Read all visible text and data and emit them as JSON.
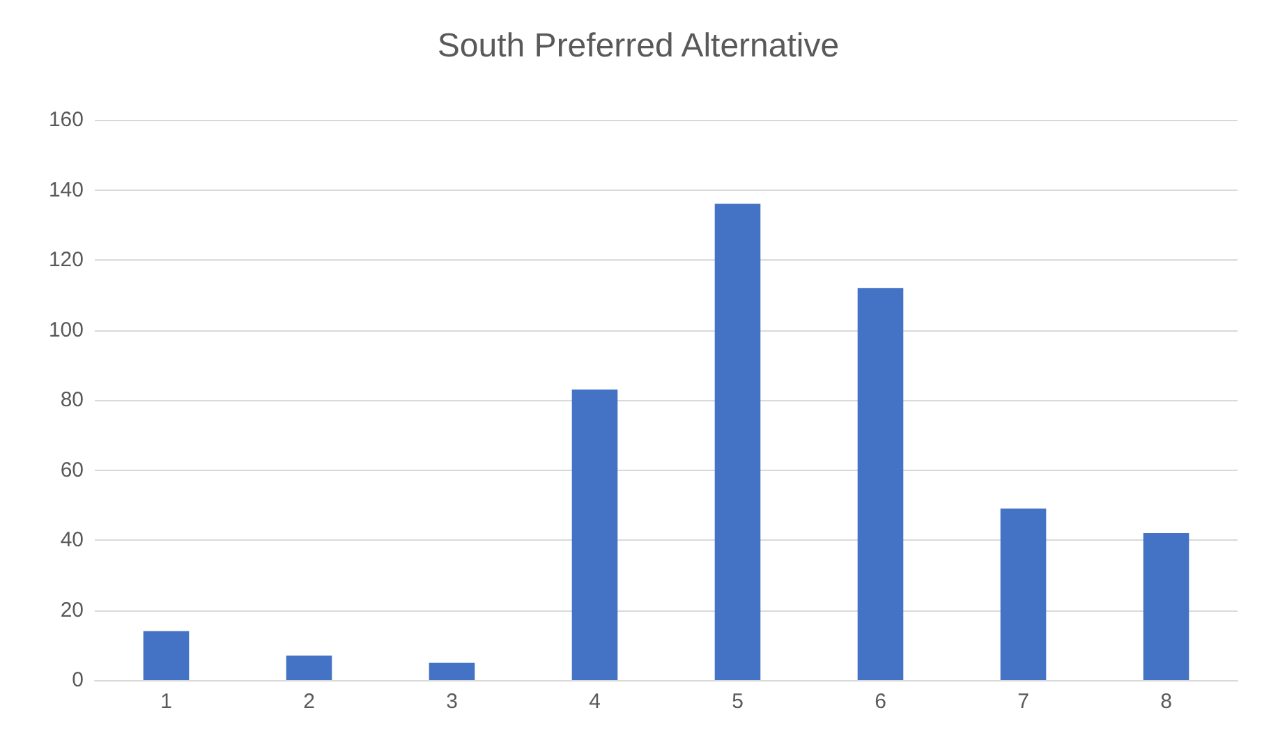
{
  "chart_data": {
    "type": "bar",
    "title": "South Preferred Alternative",
    "categories": [
      "1",
      "2",
      "3",
      "4",
      "5",
      "6",
      "7",
      "8"
    ],
    "values": [
      14,
      7,
      5,
      83,
      136,
      112,
      49,
      42
    ],
    "color": "#4472c4",
    "ylim": [
      0,
      160
    ],
    "yticks": [
      0,
      20,
      40,
      60,
      80,
      100,
      120,
      140,
      160
    ],
    "grid": "y"
  }
}
